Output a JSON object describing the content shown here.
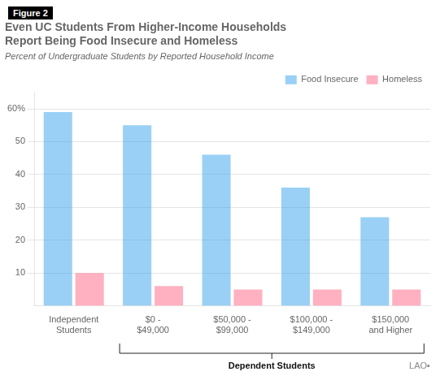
{
  "chart_data": {
    "type": "bar",
    "title": [
      "Even UC Students From Higher-Income Households",
      "Report Being Food Insecure and Homeless"
    ],
    "subtitle": "Percent of Undergraduate Students by Reported Household Income",
    "categories": [
      "Independent\nStudents",
      "$0 -\n$49,000",
      "$50,000 -\n$99,000",
      "$100,000 -\n$149,000",
      "$150,000\nand Higher"
    ],
    "series": [
      {
        "name": "Food Insecure",
        "values": [
          59,
          55,
          46,
          36,
          27
        ]
      },
      {
        "name": "Homeless",
        "values": [
          10,
          6,
          5,
          5,
          5
        ]
      }
    ],
    "ylim": [
      0,
      65
    ],
    "yticks": [
      10,
      20,
      30,
      40,
      50,
      {
        "value": 60,
        "label": "60%"
      }
    ],
    "grid": "y",
    "legend": "upper right",
    "annotations": [
      {
        "text": "Figure 2"
      },
      {
        "text": "Dependent Students",
        "from": "$0 -\n$49,000",
        "to": "$150,000\nand Higher"
      },
      {
        "text": "LAO▪"
      }
    ]
  }
}
